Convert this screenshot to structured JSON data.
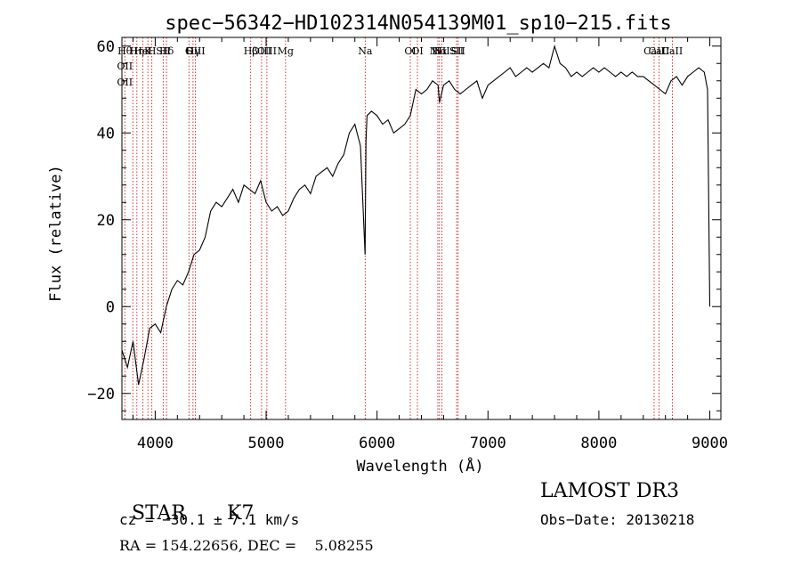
{
  "chart_data": {
    "type": "line",
    "title": "spec−56342−HD102314N054139M01_sp10−215.fits",
    "xlabel": "Wavelength (Å)",
    "ylabel": "Flux (relative)",
    "xlim": [
      3700,
      9100
    ],
    "ylim": [
      -26,
      62
    ],
    "xticks": [
      4000,
      5000,
      6000,
      7000,
      8000,
      9000
    ],
    "yticks": [
      -20,
      0,
      20,
      40,
      60
    ],
    "ytick_labels": [
      "−20",
      "0",
      "20",
      "40",
      "60"
    ],
    "series": [
      {
        "x": [
          3700,
          3750,
          3800,
          3850,
          3900,
          3950,
          4000,
          4050,
          4100,
          4150,
          4200,
          4250,
          4300,
          4350,
          4400,
          4450,
          4500,
          4550,
          4600,
          4650,
          4700,
          4750,
          4800,
          4850,
          4900,
          4950,
          5000,
          5050,
          5100,
          5150,
          5200,
          5250,
          5300,
          5350,
          5400,
          5450,
          5500,
          5550,
          5600,
          5650,
          5700,
          5750,
          5800,
          5850,
          5892,
          5900,
          5910,
          5950,
          6000,
          6050,
          6100,
          6150,
          6200,
          6250,
          6300,
          6350,
          6400,
          6450,
          6500,
          6550,
          6563,
          6600,
          6650,
          6700,
          6750,
          6800,
          6850,
          6900,
          6950,
          7000,
          7050,
          7100,
          7150,
          7200,
          7250,
          7300,
          7350,
          7400,
          7450,
          7500,
          7550,
          7600,
          7650,
          7700,
          7750,
          7800,
          7850,
          7900,
          7950,
          8000,
          8050,
          8100,
          8150,
          8200,
          8250,
          8300,
          8350,
          8400,
          8450,
          8500,
          8550,
          8600,
          8650,
          8700,
          8750,
          8800,
          8850,
          8900,
          8950,
          8980,
          9000
        ],
        "y": [
          -10,
          -14,
          -8,
          -18,
          -12,
          -5,
          -4,
          -6,
          0,
          4,
          6,
          5,
          8,
          12,
          13,
          16,
          22,
          24,
          23,
          25,
          27,
          24,
          28,
          27,
          26,
          29,
          24,
          22,
          23,
          21,
          22,
          25,
          27,
          28,
          26,
          30,
          31,
          32,
          30,
          33,
          35,
          40,
          42,
          37,
          12,
          38,
          44,
          45,
          44,
          42,
          43,
          40,
          41,
          42,
          44,
          50,
          49,
          50,
          52,
          51,
          47,
          51,
          52,
          50,
          49,
          50,
          51,
          52,
          48,
          51,
          52,
          53,
          54,
          55,
          53,
          54,
          55,
          54,
          55,
          56,
          55,
          60,
          56,
          55,
          53,
          54,
          53,
          54,
          55,
          54,
          55,
          54,
          53,
          54,
          53,
          54,
          53,
          53,
          52,
          51,
          50,
          49,
          52,
          53,
          51,
          53,
          54,
          55,
          54,
          50,
          0
        ]
      }
    ],
    "lines": [
      {
        "x": 3726,
        "labels": [
          "Hθ",
          "OII",
          "OII"
        ]
      },
      {
        "x": 3798,
        "labels": []
      },
      {
        "x": 3835,
        "labels": [
          "Hη"
        ]
      },
      {
        "x": 3889,
        "labels": [
          "HeI"
        ]
      },
      {
        "x": 3934,
        "labels": [
          "K"
        ]
      },
      {
        "x": 3970,
        "labels": [
          "H"
        ]
      },
      {
        "x": 4072,
        "labels": [
          "SII"
        ]
      },
      {
        "x": 4102,
        "labels": [
          "Hδ"
        ]
      },
      {
        "x": 4304,
        "labels": [
          "G"
        ]
      },
      {
        "x": 4341,
        "labels": [
          "Hγ"
        ]
      },
      {
        "x": 4363,
        "labels": [
          "OIII"
        ]
      },
      {
        "x": 4861,
        "labels": [
          "Hβ"
        ]
      },
      {
        "x": 4959,
        "labels": [
          "OIII"
        ]
      },
      {
        "x": 5007,
        "labels": [
          "OIII"
        ]
      },
      {
        "x": 5175,
        "labels": [
          "Mg"
        ]
      },
      {
        "x": 5893,
        "labels": [
          "Na"
        ]
      },
      {
        "x": 6300,
        "labels": [
          "OI"
        ]
      },
      {
        "x": 6364,
        "labels": [
          "OI"
        ]
      },
      {
        "x": 6548,
        "labels": [
          "NII"
        ]
      },
      {
        "x": 6563,
        "labels": [
          "Hα"
        ]
      },
      {
        "x": 6584,
        "labels": [
          "NII"
        ]
      },
      {
        "x": 6717,
        "labels": [
          "SII"
        ]
      },
      {
        "x": 6731,
        "labels": [
          "SII"
        ]
      },
      {
        "x": 8498,
        "labels": [
          "CaII"
        ]
      },
      {
        "x": 8542,
        "labels": [
          "CaII"
        ]
      },
      {
        "x": 8662,
        "labels": [
          "CaII"
        ]
      }
    ],
    "grid": false,
    "line_color": "#000000",
    "marker_color": "#cc0000"
  },
  "info": {
    "class": "STAR",
    "subclass": "K7",
    "survey": "LAMOST DR3",
    "cz": "cz = −30.1 ± 7.1 km/s",
    "obs_date": "Obs−Date: 20130218",
    "radec": "RA = 154.22656, DEC =    5.08255"
  }
}
